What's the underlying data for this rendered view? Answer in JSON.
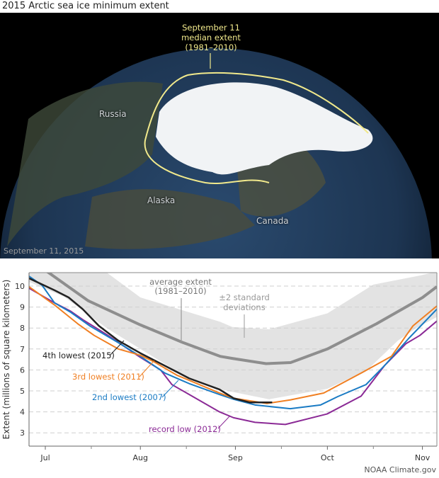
{
  "title": "2015 Arctic sea ice minimum extent",
  "map": {
    "callout": [
      "September 11",
      "median extent",
      "(1981–2010)"
    ],
    "labels": {
      "russia": "Russia",
      "alaska": "Alaska",
      "canada": "Canada"
    },
    "date": "September 11, 2015",
    "colors": {
      "median_line": "#f1e98c",
      "ocean": "#1f3a5c",
      "ice": "#f4f6f8"
    }
  },
  "credit": "NOAA Climate.gov",
  "chart_data": {
    "type": "line",
    "title": "",
    "xlabel": "",
    "ylabel": "Extent (millions of square kilometers)",
    "x_units": "days since July 1",
    "xlim": [
      -5.3,
      127.7
    ],
    "ylim": [
      2.35,
      10.65
    ],
    "yticks": [
      3,
      4,
      5,
      6,
      7,
      8,
      9,
      10
    ],
    "xticks": [
      {
        "day": 0,
        "label": "Jul"
      },
      {
        "day": 31,
        "label": "Aug"
      },
      {
        "day": 62,
        "label": "Sep"
      },
      {
        "day": 92,
        "label": "Oct"
      },
      {
        "day": 123,
        "label": "Nov"
      }
    ],
    "minor_xticks": [
      15,
      46,
      77,
      107
    ],
    "grid": "horizontal dashed",
    "band": {
      "name": "±2 standard deviations",
      "upper": {
        "x": [
          -5.3,
          20,
          31,
          57,
          61,
          73,
          92,
          107,
          122,
          128
        ],
        "y": [
          10.7,
          10.65,
          9.46,
          8.3,
          8.05,
          7.94,
          8.7,
          10.07,
          10.5,
          10.7
        ]
      },
      "lower": {
        "x": [
          -5.3,
          6,
          20,
          31,
          45,
          57,
          73,
          92,
          105,
          115,
          121,
          128
        ],
        "y": [
          10.2,
          9.5,
          8.0,
          7.0,
          5.75,
          5.07,
          4.6,
          5.1,
          6.0,
          7.4,
          8.0,
          8.55
        ]
      },
      "color": "#e3e3e3"
    },
    "series": [
      {
        "name": "average extent (1981–2010)",
        "color": "#8e8e8e",
        "width": 4,
        "x": [
          -3,
          1,
          14,
          31,
          45,
          57,
          61,
          72,
          80,
          92,
          108,
          123,
          127.7
        ],
        "y": [
          11.0,
          10.65,
          9.3,
          8.15,
          7.3,
          6.65,
          6.55,
          6.3,
          6.35,
          7.0,
          8.2,
          9.45,
          9.97
        ]
      },
      {
        "name": "record low (2012)",
        "color": "#8b2a96",
        "width": 2,
        "x": [
          -5.3,
          3,
          8.3,
          12.2,
          19.9,
          31,
          37.6,
          41.3,
          46.9,
          56.8,
          61.4,
          68.4,
          78.3,
          91.9,
          103,
          110.6,
          117.6,
          122.2,
          127.7
        ],
        "y": [
          9.9,
          9.2,
          8.8,
          8.4,
          7.7,
          6.6,
          6.0,
          5.3,
          4.83,
          4.0,
          3.72,
          3.5,
          3.4,
          3.9,
          4.75,
          6.2,
          7.25,
          7.65,
          8.33
        ]
      },
      {
        "name": "2nd lowest (2007)",
        "color": "#1a7bc4",
        "width": 2,
        "x": [
          -5.3,
          -1,
          3,
          8.3,
          14.5,
          23.8,
          31,
          39,
          46.9,
          56.8,
          61.4,
          68.4,
          79.9,
          89.8,
          95.4,
          104.6,
          110.6,
          118.5,
          127.7
        ],
        "y": [
          10.47,
          10.03,
          9.2,
          8.75,
          8.1,
          7.3,
          6.65,
          5.85,
          5.35,
          4.83,
          4.6,
          4.33,
          4.15,
          4.33,
          4.73,
          5.3,
          6.2,
          7.5,
          8.9
        ]
      },
      {
        "name": "3rd lowest (2011)",
        "color": "#f07f22",
        "width": 2,
        "x": [
          -5.3,
          3,
          10.6,
          15.9,
          23.8,
          31,
          35.3,
          42.9,
          56.8,
          61.4,
          72.3,
          79.9,
          90.8,
          103,
          112.9,
          119.9,
          127.7
        ],
        "y": [
          9.97,
          9.1,
          8.2,
          7.65,
          7.0,
          6.7,
          6.4,
          5.75,
          4.9,
          4.65,
          4.4,
          4.57,
          4.9,
          5.85,
          6.65,
          8.1,
          9.05
        ]
      },
      {
        "name": "4th lowest (2015)",
        "color": "#222222",
        "width": 2.5,
        "x": [
          -5.3,
          3,
          7.6,
          12.2,
          17.5,
          23.8,
          31,
          39,
          46.9,
          56.8,
          61.4,
          66.7,
          74
        ],
        "y": [
          10.37,
          9.8,
          9.46,
          8.9,
          8.1,
          7.4,
          6.8,
          6.2,
          5.6,
          5.07,
          4.65,
          4.45,
          4.45
        ]
      }
    ],
    "annotations": {
      "average": [
        "average extent",
        "(1981–2010)"
      ],
      "band": [
        "±2 standard",
        "deviations"
      ],
      "s2015": "4th lowest (2015)",
      "s2011": "3rd lowest (2011)",
      "s2007": "2nd lowest (2007)",
      "s2012": "record low (2012)"
    }
  }
}
